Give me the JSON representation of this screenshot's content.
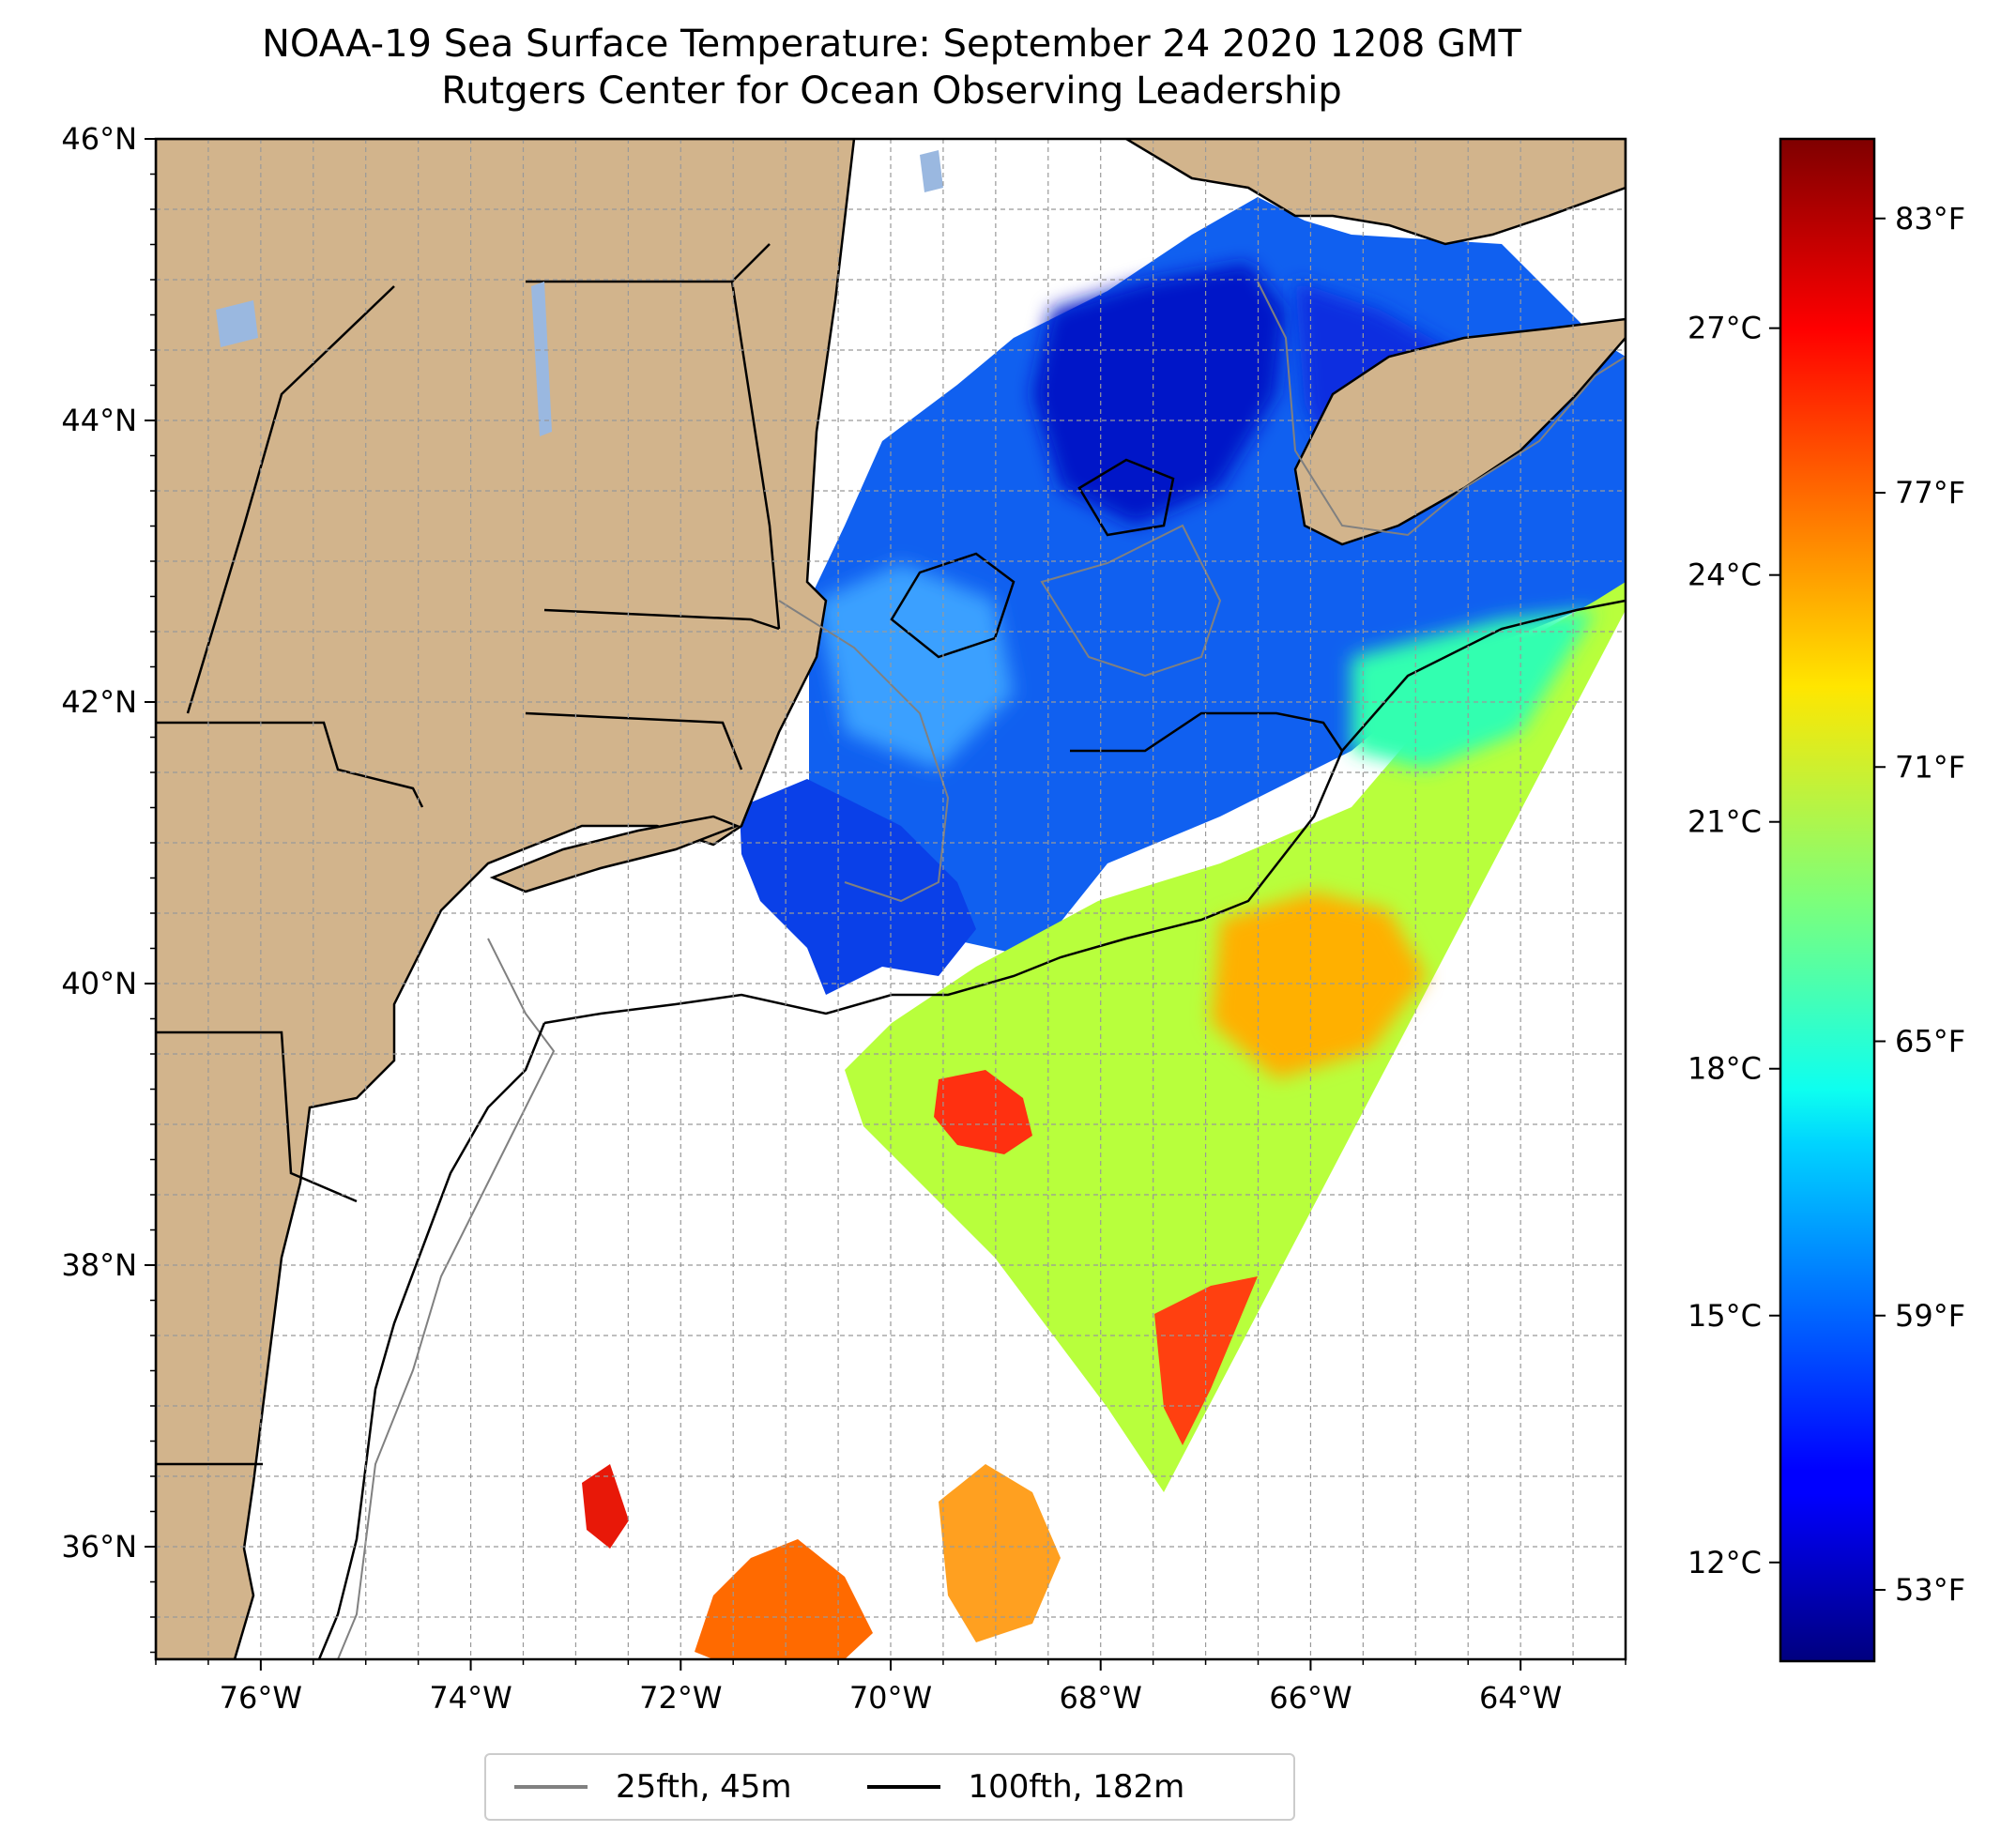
{
  "title": {
    "line1": "NOAA-19 Sea Surface Temperature: September 24 2020 1208 GMT",
    "line2": "Rutgers Center for Ocean Observing Leadership"
  },
  "map": {
    "lon_range": [
      -77,
      -63
    ],
    "lat_range": [
      35.2,
      46
    ],
    "lon_ticks": [
      -76,
      -74,
      -72,
      -70,
      -68,
      -66,
      -64
    ],
    "lon_tick_labels": [
      "76°W",
      "74°W",
      "72°W",
      "70°W",
      "68°W",
      "66°W",
      "64°W"
    ],
    "lat_ticks": [
      36,
      38,
      40,
      42,
      44,
      46
    ],
    "lat_tick_labels": [
      "36°N",
      "38°N",
      "40°N",
      "42°N",
      "44°N",
      "46°N"
    ],
    "grid": true,
    "land_color": "#d2b48c",
    "water_color": "#9ab8e0",
    "ocean_nodata_color": "#ffffff"
  },
  "colorbar": {
    "colormap": "jet",
    "celsius_range": [
      10.8,
      29.3
    ],
    "celsius_ticks": [
      12,
      15,
      18,
      21,
      24,
      27
    ],
    "celsius_labels": [
      "12°C",
      "15°C",
      "18°C",
      "21°C",
      "24°C",
      "27°C"
    ],
    "fahrenheit_ticks": [
      53,
      59,
      65,
      71,
      77,
      83
    ],
    "fahrenheit_labels": [
      "53°F",
      "59°F",
      "65°F",
      "71°F",
      "77°F",
      "83°F"
    ]
  },
  "legend": {
    "items": [
      {
        "label": "25fth, 45m",
        "color": "#808080"
      },
      {
        "label": "100fth, 182m",
        "color": "#000000"
      }
    ]
  }
}
